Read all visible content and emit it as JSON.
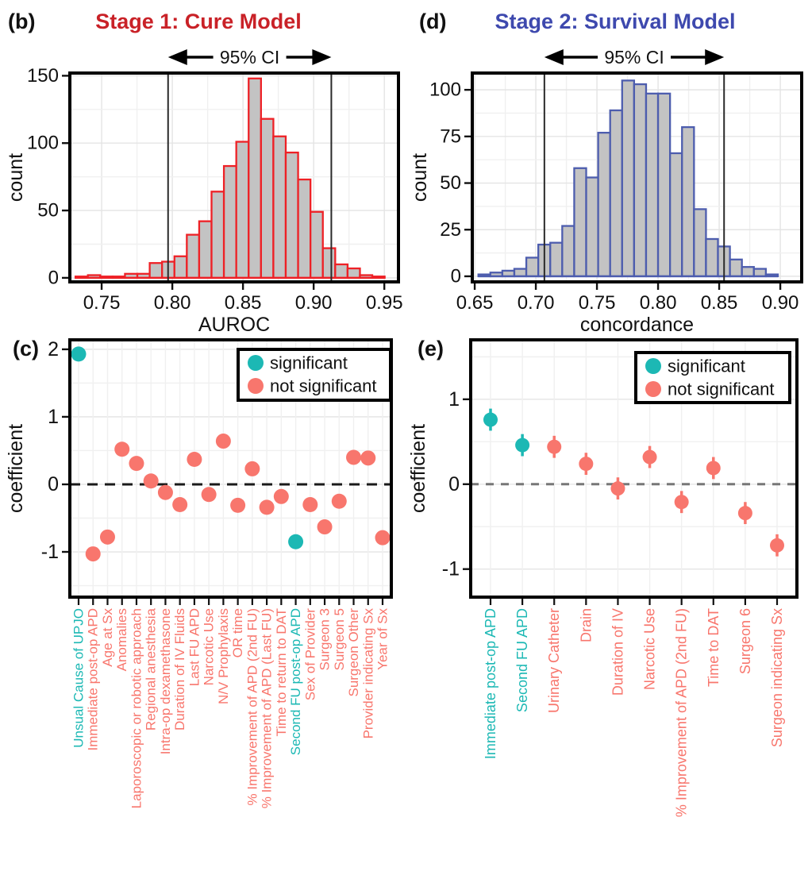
{
  "colors": {
    "cure_red_title": "#c92127",
    "cure_red_stroke": "#ee2126",
    "survival_blue_title": "#3e49ae",
    "survival_blue_stroke": "#4d5dae",
    "bar_fill": "#c3c3c3",
    "significant_teal": "#1cb8b4",
    "not_significant_salmon": "#f8766d",
    "grid_major": "#e4e4e4",
    "grid_minor": "#f0f0f0",
    "axis_text": "#111111",
    "border_black": "#000000",
    "ci_line": "#2a2a2a",
    "zero_line_c": "#1a1a1a",
    "zero_line_e": "#777777",
    "panel_bg": "#ffffff"
  },
  "legend": {
    "significant": "significant",
    "not_significant": "not significant"
  },
  "panels": {
    "b": {
      "tag": "(b)",
      "title": "Stage 1: Cure Model"
    },
    "d": {
      "tag": "(d)",
      "title": "Stage 2: Survival Model"
    },
    "c": {
      "tag": "(c)"
    },
    "e": {
      "tag": "(e)"
    }
  },
  "chart_data": [
    {
      "panel": "b",
      "type": "bar",
      "subtype": "histogram",
      "title": "Stage 1: Cure Model",
      "xlabel": "AUROC",
      "ylabel": "count",
      "ci_label": "95% CI",
      "ci": [
        0.797,
        0.9125
      ],
      "bin_start": 0.7315,
      "bin_width": 0.00875,
      "counts": [
        1,
        2,
        1,
        1,
        3,
        3,
        11,
        12,
        16,
        32,
        42,
        64,
        83,
        101,
        148,
        118,
        105,
        93,
        73,
        49,
        22,
        10,
        7,
        2,
        1
      ],
      "xticks": [
        0.75,
        0.8,
        0.85,
        0.9,
        0.95
      ],
      "xtick_labels": [
        "0.75",
        "0.80",
        "0.85",
        "0.90",
        "0.95"
      ],
      "yticks": [
        0,
        50,
        100,
        150
      ],
      "xlim": [
        0.7275,
        0.96
      ],
      "ylim": [
        -3,
        152
      ],
      "grid": true,
      "stroke": "#ee2126",
      "fill": "#c3c3c3"
    },
    {
      "panel": "d",
      "type": "bar",
      "subtype": "histogram",
      "title": "Stage 2: Survival Model",
      "xlabel": "concordance",
      "ylabel": "count",
      "ci_label": "95% CI",
      "ci": [
        0.707,
        0.854
      ],
      "bin_start": 0.653,
      "bin_width": 0.0098,
      "counts": [
        1,
        2,
        3,
        4,
        10,
        17,
        18,
        27,
        58,
        53,
        77,
        89,
        105,
        103,
        98,
        98,
        66,
        80,
        36,
        20,
        16,
        9,
        5,
        4,
        1
      ],
      "xticks": [
        0.65,
        0.7,
        0.75,
        0.8,
        0.85,
        0.9
      ],
      "xtick_labels": [
        "0.65",
        "0.70",
        "0.75",
        "0.80",
        "0.85",
        "0.90"
      ],
      "yticks": [
        0,
        25,
        50,
        75,
        100
      ],
      "xlim": [
        0.648,
        0.9175
      ],
      "ylim": [
        -3,
        109
      ],
      "grid": true,
      "stroke": "#4d5dae",
      "fill": "#c3c3c3"
    },
    {
      "panel": "c",
      "type": "scatter",
      "ylabel": "coefficient",
      "yticks": [
        -1,
        0,
        1,
        2
      ],
      "ylim": [
        -1.67,
        2.14
      ],
      "zero_line": true,
      "legend_position": "top-right",
      "points": [
        {
          "label": "Unsual Cause of UPJO",
          "value": 1.93,
          "significant": true
        },
        {
          "label": "Immediate post-op APD",
          "value": -1.03,
          "significant": false
        },
        {
          "label": "Age at Sx",
          "value": -0.78,
          "significant": false
        },
        {
          "label": "Anomalies",
          "value": 0.52,
          "significant": false
        },
        {
          "label": "Laporoscopic or robotic approach",
          "value": 0.31,
          "significant": false
        },
        {
          "label": "Regional anesthesia",
          "value": 0.05,
          "significant": false
        },
        {
          "label": "Intra-op dexamethasone",
          "value": -0.12,
          "significant": false
        },
        {
          "label": "Duration of IV Fluids",
          "value": -0.3,
          "significant": false
        },
        {
          "label": "Last FU APD",
          "value": 0.37,
          "significant": false
        },
        {
          "label": "Narcotic Use",
          "value": -0.15,
          "significant": false
        },
        {
          "label": "N/V Prophylaxis",
          "value": 0.64,
          "significant": false
        },
        {
          "label": "OR time",
          "value": -0.31,
          "significant": false
        },
        {
          "label": "% Improvement of APD (2nd FU)",
          "value": 0.23,
          "significant": false
        },
        {
          "label": "% Improvement of APD (Last FU)",
          "value": -0.34,
          "significant": false
        },
        {
          "label": "Time to return to DAT",
          "value": -0.18,
          "significant": false
        },
        {
          "label": "Second FU post-op APD",
          "value": -0.85,
          "significant": true
        },
        {
          "label": "Sex of Provider",
          "value": -0.3,
          "significant": false
        },
        {
          "label": "Surgeon 3",
          "value": -0.63,
          "significant": false
        },
        {
          "label": "Surgeon 5",
          "value": -0.25,
          "significant": false
        },
        {
          "label": "Surgeon Other",
          "value": 0.4,
          "significant": false
        },
        {
          "label": "Provider indicating Sx",
          "value": 0.39,
          "significant": false
        },
        {
          "label": "Year of Sx",
          "value": -0.79,
          "significant": false
        }
      ]
    },
    {
      "panel": "e",
      "type": "scatter",
      "ylabel": "coefficient",
      "yticks": [
        -1,
        0,
        1
      ],
      "ylim": [
        -1.33,
        1.7
      ],
      "zero_line": true,
      "legend_position": "top-right",
      "points": [
        {
          "label": "Immediate post-op APD",
          "value": 0.76,
          "significant": true
        },
        {
          "label": "Second FU APD",
          "value": 0.46,
          "significant": true
        },
        {
          "label": "Urinary Catheter",
          "value": 0.44,
          "significant": false
        },
        {
          "label": "Drain",
          "value": 0.24,
          "significant": false
        },
        {
          "label": "Duration of IV",
          "value": -0.05,
          "significant": false
        },
        {
          "label": "Narcotic Use",
          "value": 0.32,
          "significant": false
        },
        {
          "label": "% Improvement of APD (2nd FU)",
          "value": -0.21,
          "significant": false
        },
        {
          "label": "Time to DAT",
          "value": 0.19,
          "significant": false
        },
        {
          "label": "Surgeon 6",
          "value": -0.34,
          "significant": false
        },
        {
          "label": "Surgeon indicating Sx",
          "value": -0.72,
          "significant": false
        }
      ]
    }
  ]
}
